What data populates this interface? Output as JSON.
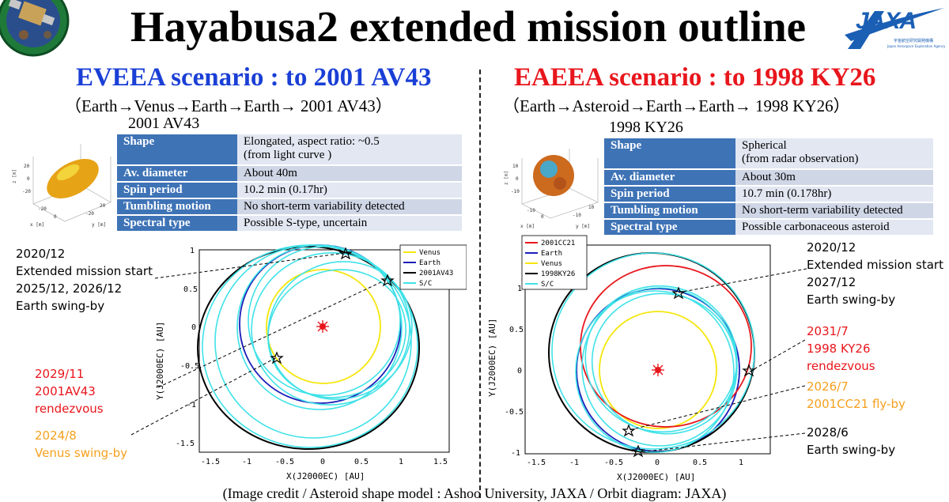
{
  "title": "Hayabusa2 extended mission outline",
  "logo": {
    "text": "JAXA",
    "sub1": "宇宙航空研究開発機構",
    "sub2": "Japan Aerospace Exploration Agency",
    "color": "#1a5fb4"
  },
  "left": {
    "scenario": "EVEEA scenario : to 2001 AV43",
    "scenario_color": "#1a3fd6",
    "route": "（Earth→Venus→Earth→Earth→ 2001 AV43）",
    "asteroid": "2001 AV43",
    "table": [
      {
        "key": "Shape",
        "value": "Elongated, aspect ratio: ~0.5",
        "value2": "(from light curve )"
      },
      {
        "key": "Av. diameter",
        "value": "About 40m",
        "value2": ""
      },
      {
        "key": "Spin period",
        "value": "10.2 min (0.17hr)",
        "value2": ""
      },
      {
        "key": "Tumbling motion",
        "value": "No short-term variability detected",
        "value2": ""
      },
      {
        "key": "Spectral type",
        "value": "Possible S-type, uncertain",
        "value2": ""
      }
    ],
    "notes": {
      "n1": "2020/12",
      "n2": "Extended mission start",
      "n3": "2025/12, 2026/12",
      "n4": "Earth swing-by",
      "r1": "2029/11",
      "r2": "2001AV43",
      "r3": "rendezvous",
      "o1": "2024/8",
      "o2": "Venus swing-by"
    },
    "plot": {
      "xlabel": "X(J2000EC) [AU]",
      "ylabel": "Y(J2000EC) [AU]",
      "xticks": [
        "-1.5",
        "-1",
        "-0.5",
        "0",
        "0.5",
        "1",
        "1.5"
      ],
      "yticks": [
        "1",
        "0.5",
        "0",
        "-0.5",
        "-1",
        "-1.5"
      ],
      "legend": [
        "Venus",
        "Earth",
        "2001AV43",
        "S/C"
      ]
    }
  },
  "right": {
    "scenario": "EAEEA scenario : to 1998 KY26",
    "scenario_color": "#e8161c",
    "route": "（Earth→Asteroid→Earth→Earth→ 1998 KY26）",
    "asteroid": "1998 KY26",
    "table": [
      {
        "key": "Shape",
        "value": "Spherical",
        "value2": "(from radar observation)"
      },
      {
        "key": "Av. diameter",
        "value": "About 30m",
        "value2": ""
      },
      {
        "key": "Spin period",
        "value": "10.7 min (0.178hr)",
        "value2": ""
      },
      {
        "key": "Tumbling motion",
        "value": "No short-term variability detected",
        "value2": ""
      },
      {
        "key": "Spectral type",
        "value": "Possible carbonaceous asteroid",
        "value2": ""
      }
    ],
    "notes": {
      "n1": "2020/12",
      "n2": "Extended mission start",
      "n3": "2027/12",
      "n4": "Earth swing-by",
      "r1": "2031/7",
      "r2": "1998 KY26",
      "r3": "rendezvous",
      "o1": "2026/7",
      "o2": "2001CC21 fly-by",
      "b1": "2028/6",
      "b2": "Earth swing-by"
    },
    "plot": {
      "xlabel": "X(J2000EC) [AU]",
      "ylabel": "Y(J2000EC) [AU]",
      "xticks": [
        "-1.5",
        "-1",
        "-0.5",
        "0",
        "0.5",
        "1"
      ],
      "yticks": [
        "1",
        "0.5",
        "0",
        "-0.5",
        "-1"
      ],
      "legend": [
        "2001CC21",
        "Earth",
        "Venus",
        "1998KY26",
        "S/C"
      ]
    }
  },
  "credit": "(Image credit / Asteroid shape model : Ashoo University, JAXA / Orbit diagram: JAXA)"
}
